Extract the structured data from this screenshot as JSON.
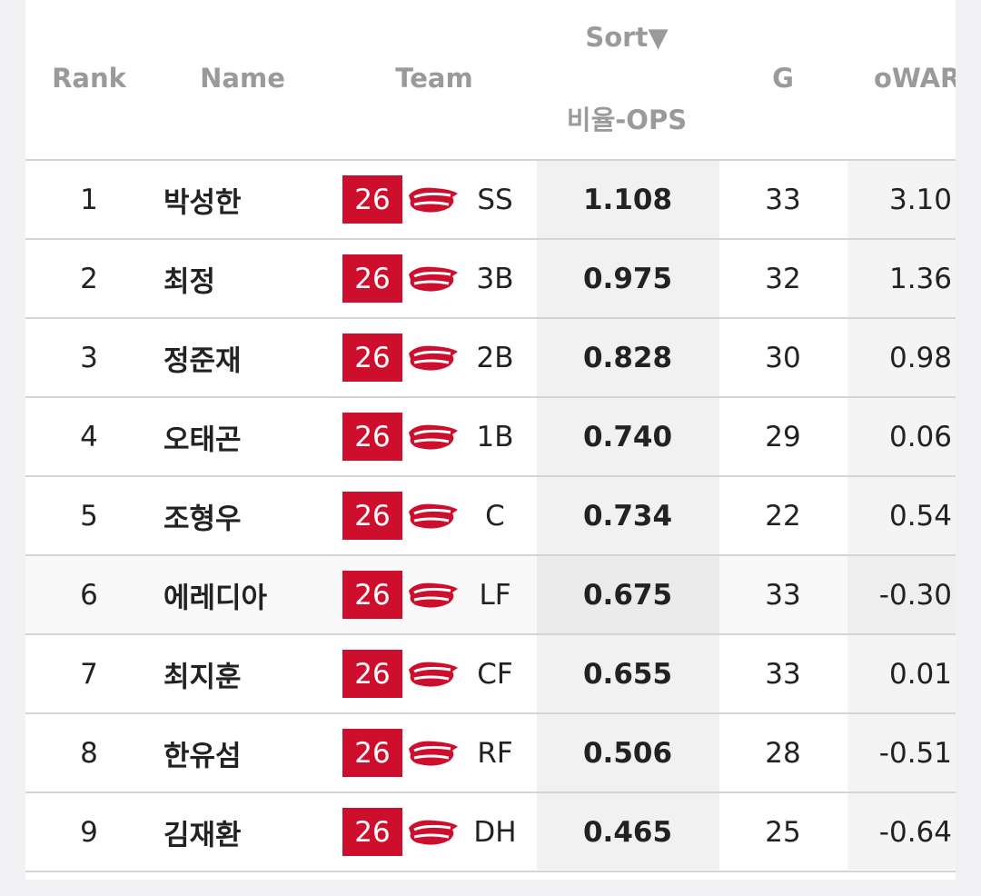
{
  "header": {
    "rank": "Rank",
    "name": "Name",
    "team": "Team",
    "sort": "Sort▼",
    "ops": "비율-OPS",
    "g": "G",
    "owar": "oWAR"
  },
  "table": {
    "rows": [
      [
        "1",
        "박성한",
        "26",
        "SS",
        "1.108",
        "33",
        "3.10"
      ],
      [
        "2",
        "최정",
        "26",
        "3B",
        "0.975",
        "32",
        "1.36"
      ],
      [
        "3",
        "정준재",
        "26",
        "2B",
        "0.828",
        "30",
        "0.98"
      ],
      [
        "4",
        "오태곤",
        "26",
        "1B",
        "0.740",
        "29",
        "0.06"
      ],
      [
        "5",
        "조형우",
        "26",
        "C",
        "0.734",
        "22",
        "0.54"
      ],
      [
        "6",
        "에레디아",
        "26",
        "LF",
        "0.675",
        "33",
        "-0.30"
      ],
      [
        "7",
        "최지훈",
        "26",
        "CF",
        "0.655",
        "33",
        "0.01"
      ],
      [
        "8",
        "한유섬",
        "26",
        "RF",
        "0.506",
        "28",
        "-0.51"
      ],
      [
        "9",
        "김재환",
        "26",
        "DH",
        "0.465",
        "25",
        "-0.64"
      ]
    ]
  }
}
